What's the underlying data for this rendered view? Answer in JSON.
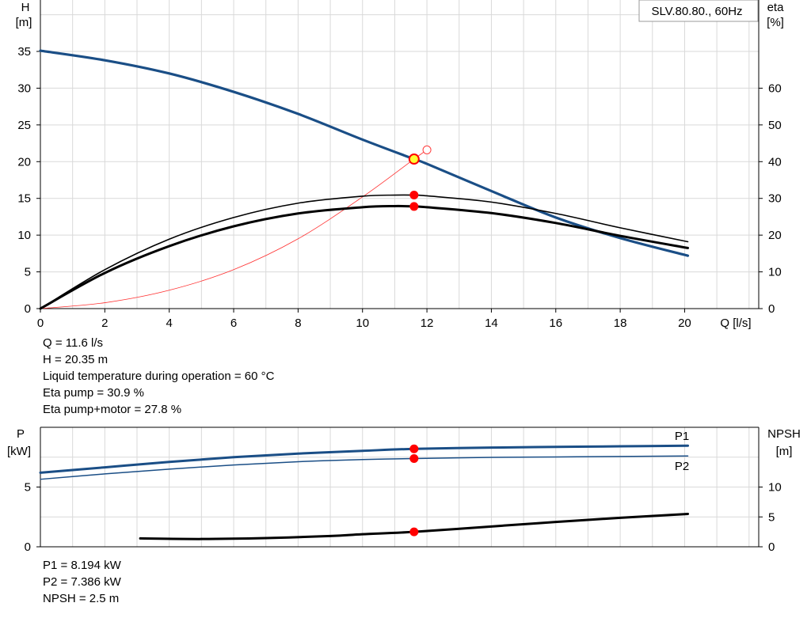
{
  "chart_data": [
    {
      "type": "line",
      "title_box": "SLV.80.80., 60Hz",
      "xlabel": "Q [l/s]",
      "ylabel_left": "H",
      "ylabel_left_unit": "[m]",
      "ylabel_right": "eta",
      "ylabel_right_unit": "[%]",
      "xlim": [
        0,
        22.3
      ],
      "ylim_left": [
        0,
        42
      ],
      "ylim_right": [
        0,
        84
      ],
      "x_ticks": [
        0,
        2,
        4,
        6,
        8,
        10,
        12,
        14,
        16,
        18,
        20
      ],
      "y_left_ticks": [
        0,
        5,
        10,
        15,
        20,
        25,
        30,
        35
      ],
      "y_right_ticks": [
        0,
        10,
        20,
        30,
        40,
        50,
        60
      ],
      "grid": true,
      "series": [
        {
          "role": "H",
          "axis": "left",
          "color": "#1a4e86",
          "width": 3.2,
          "x": [
            0,
            2,
            4,
            6,
            8,
            10,
            11.6,
            12,
            14,
            16,
            18,
            20.1
          ],
          "y": [
            35.1,
            33.8,
            32.0,
            29.5,
            26.5,
            23.0,
            20.35,
            19.7,
            16.0,
            12.4,
            9.6,
            7.2
          ]
        },
        {
          "role": "system",
          "axis": "left",
          "color": "#ff3030",
          "width": 0.8,
          "x": [
            0,
            2,
            4,
            6,
            8,
            10,
            11.6,
            12
          ],
          "y": [
            0,
            0.8,
            2.5,
            5.3,
            9.5,
            15.2,
            20.35,
            21.6
          ]
        },
        {
          "role": "eta-pump",
          "axis": "right",
          "color": "#000000",
          "width": 1.6,
          "x": [
            0,
            2,
            4,
            6,
            8,
            10,
            11,
            11.6,
            12,
            14,
            16,
            18,
            20.1
          ],
          "y": [
            0,
            10.6,
            18.9,
            24.8,
            28.7,
            30.6,
            30.9,
            30.9,
            30.7,
            29.0,
            25.9,
            22.0,
            18.2
          ]
        },
        {
          "role": "eta-pump-motor",
          "axis": "right",
          "color": "#000000",
          "width": 3,
          "x": [
            0,
            2,
            4,
            6,
            8,
            10,
            11,
            11.6,
            12,
            14,
            16,
            18,
            20.1
          ],
          "y": [
            0,
            9.7,
            17.0,
            22.4,
            25.9,
            27.6,
            27.9,
            27.8,
            27.6,
            26.0,
            23.3,
            19.8,
            16.5
          ]
        }
      ],
      "operating_point": {
        "q": 11.6,
        "h": 20.35,
        "eta_pump": 30.9,
        "eta_pump_motor": 27.8
      },
      "info_lines": [
        "Q = 11.6 l/s",
        "H = 20.35 m",
        "Liquid temperature during operation = 60 °C",
        "Eta pump = 30.9 %",
        "Eta pump+motor = 27.8 %"
      ]
    },
    {
      "type": "line",
      "ylabel_left": "P",
      "ylabel_left_unit": "[kW]",
      "ylabel_right": "NPSH",
      "ylabel_right_unit": "[m]",
      "xlim": [
        0,
        22.3
      ],
      "ylim_left": [
        0,
        10
      ],
      "ylim_right": [
        0,
        20
      ],
      "y_left_ticks": [
        0,
        5
      ],
      "y_right_ticks": [
        0,
        5,
        10
      ],
      "grid": true,
      "series": [
        {
          "name": "P1",
          "axis": "left",
          "color": "#1a4e86",
          "width": 3,
          "x": [
            0,
            2,
            4,
            6,
            8,
            10,
            11.6,
            14,
            16,
            18,
            20.1
          ],
          "y": [
            6.2,
            6.65,
            7.1,
            7.5,
            7.8,
            8.03,
            8.194,
            8.3,
            8.36,
            8.41,
            8.46
          ]
        },
        {
          "name": "P2",
          "axis": "left",
          "color": "#1a4e86",
          "width": 1.5,
          "x": [
            0,
            2,
            4,
            6,
            8,
            10,
            11.6,
            14,
            16,
            18,
            20.1
          ],
          "y": [
            5.65,
            6.1,
            6.5,
            6.85,
            7.12,
            7.3,
            7.386,
            7.48,
            7.52,
            7.56,
            7.6
          ]
        },
        {
          "role": "NPSH",
          "axis": "right",
          "color": "#000000",
          "width": 3,
          "x": [
            3.1,
            5,
            7,
            9,
            10,
            11.6,
            14,
            16,
            18,
            20.1
          ],
          "y": [
            1.4,
            1.3,
            1.45,
            1.8,
            2.1,
            2.5,
            3.4,
            4.15,
            4.85,
            5.5
          ]
        }
      ],
      "operating_point": {
        "q": 11.6,
        "p1": 8.194,
        "p2": 7.386,
        "npsh": 2.5
      },
      "info_lines": [
        "P1 = 8.194 kW",
        "P2 = 7.386 kW",
        "NPSH = 2.5 m"
      ]
    }
  ]
}
